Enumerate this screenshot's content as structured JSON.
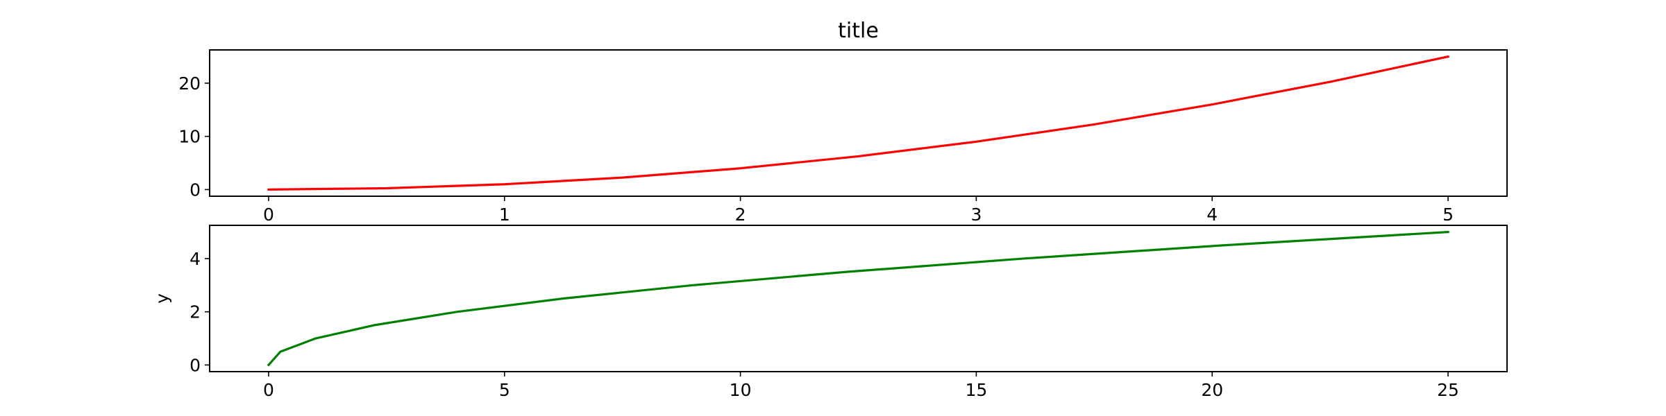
{
  "chart_data": [
    {
      "type": "line",
      "title": "title",
      "xlabel": "",
      "ylabel": "",
      "xlim": [
        -0.25,
        5.25
      ],
      "ylim": [
        -1.25,
        26.25
      ],
      "xticks": [
        0,
        1,
        2,
        3,
        4,
        5
      ],
      "yticks": [
        0,
        10,
        20
      ],
      "grid": false,
      "series": [
        {
          "color": "#ff0000",
          "x": [
            0,
            0.5,
            1,
            1.5,
            2,
            2.5,
            3,
            3.5,
            4,
            4.5,
            5
          ],
          "y": [
            0,
            0.25,
            1,
            2.25,
            4,
            6.25,
            9,
            12.25,
            16,
            20.25,
            25
          ]
        }
      ]
    },
    {
      "type": "line",
      "title": "",
      "xlabel": "",
      "ylabel": "y",
      "xlim": [
        -1.25,
        26.25
      ],
      "ylim": [
        -0.25,
        5.25
      ],
      "xticks": [
        0,
        5,
        10,
        15,
        20,
        25
      ],
      "yticks": [
        0,
        2,
        4
      ],
      "grid": false,
      "series": [
        {
          "color": "#008000",
          "x": [
            0,
            0.25,
            1,
            2.25,
            4,
            6.25,
            9,
            12.25,
            16,
            20.25,
            25
          ],
          "y": [
            0,
            0.5,
            1,
            1.5,
            2,
            2.5,
            3,
            3.5,
            4,
            4.5,
            5
          ]
        }
      ]
    }
  ]
}
